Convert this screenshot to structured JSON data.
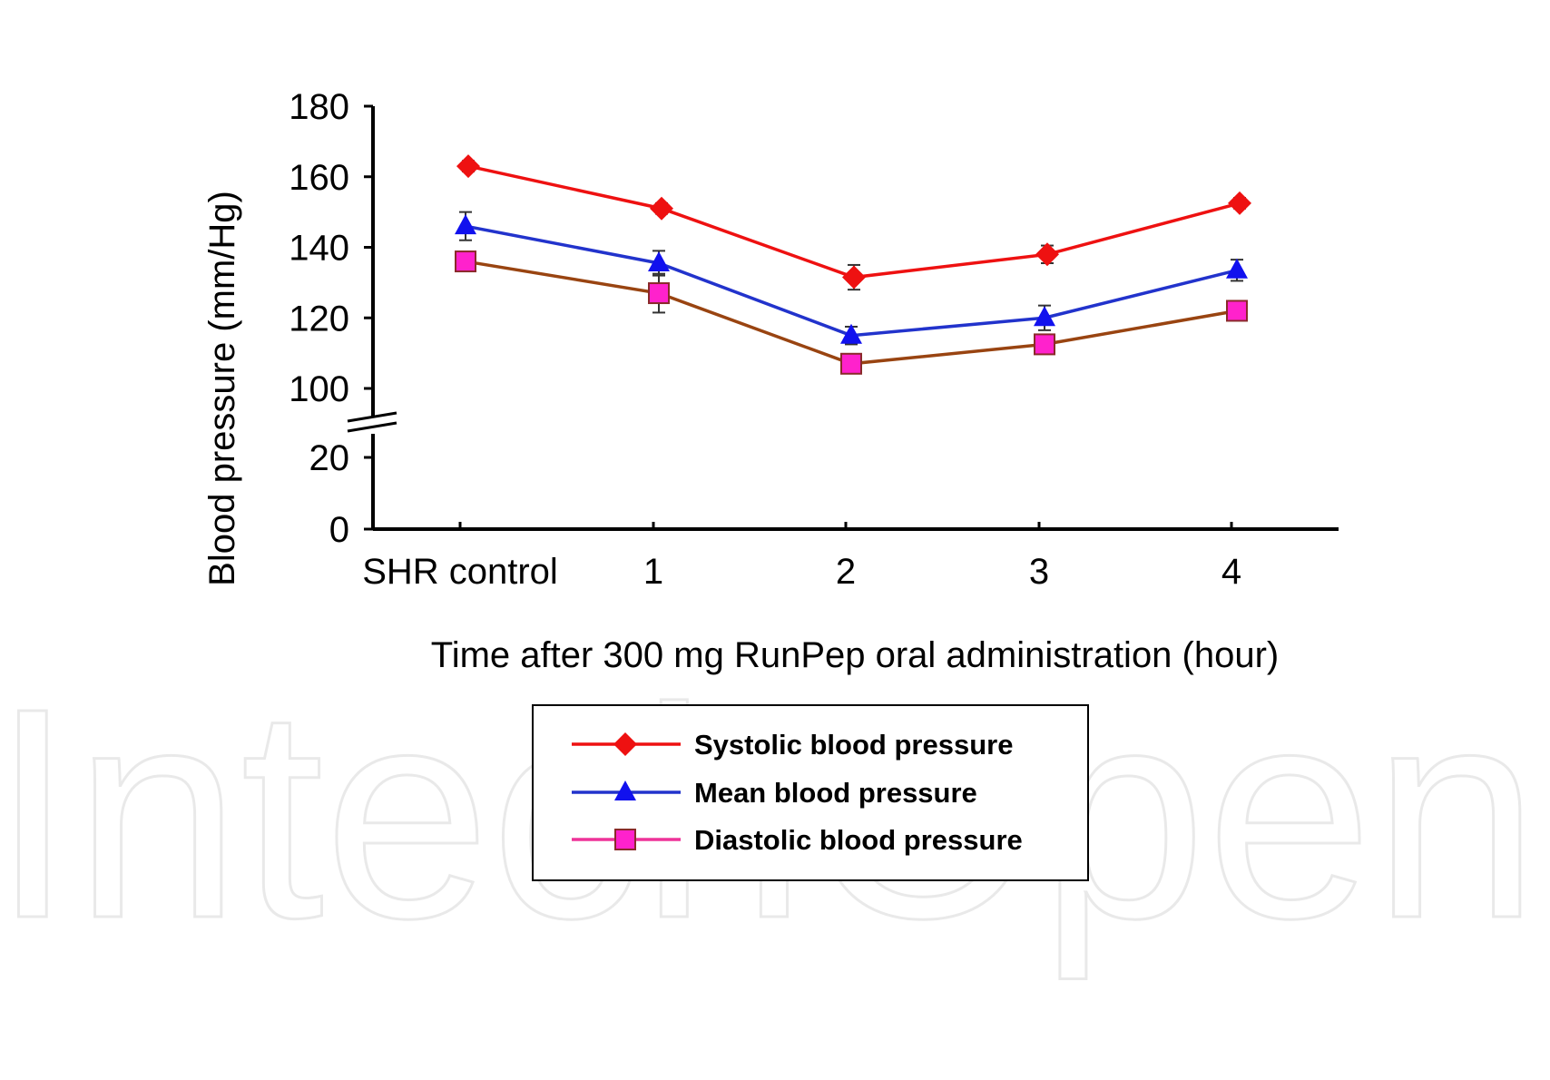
{
  "watermark": "IntechOpen",
  "chart_data": {
    "type": "line",
    "title": "",
    "xlabel": "Time after 300 mg RunPep oral administration  (hour)",
    "ylabel": "Blood pressure (mm/Hg)",
    "categories": [
      "SHR control",
      "1",
      "2",
      "3",
      "4"
    ],
    "y_ticks_lower": [
      0,
      20
    ],
    "y_ticks_upper": [
      100,
      120,
      140,
      160,
      180
    ],
    "ylim_lower": [
      0,
      20
    ],
    "ylim_upper": [
      100,
      180
    ],
    "axis_break": true,
    "grid": false,
    "legend_position": "bottom",
    "series": [
      {
        "name": "Systolic blood pressure",
        "values": [
          163,
          151,
          131.5,
          138,
          152.5
        ],
        "errors": [
          1.5,
          1.5,
          3.5,
          2.5,
          1.5
        ],
        "line_color": "#ee1111",
        "marker": "diamond",
        "marker_color": "#ee1111"
      },
      {
        "name": "Mean blood pressure",
        "values": [
          146,
          135.5,
          115,
          120,
          133.5
        ],
        "errors": [
          4,
          3.5,
          2.5,
          3.5,
          3
        ],
        "line_color": "#2233cc",
        "marker": "triangle",
        "marker_color": "#1111ee"
      },
      {
        "name": "Diastolic blood pressure",
        "values": [
          136,
          127,
          107,
          112.5,
          122
        ],
        "errors": [
          2,
          5.5,
          1.5,
          2,
          1.5
        ],
        "line_color": "#994411",
        "marker": "square",
        "marker_color": "#ff22cc",
        "legend_line_color": "#ee3399"
      }
    ]
  }
}
